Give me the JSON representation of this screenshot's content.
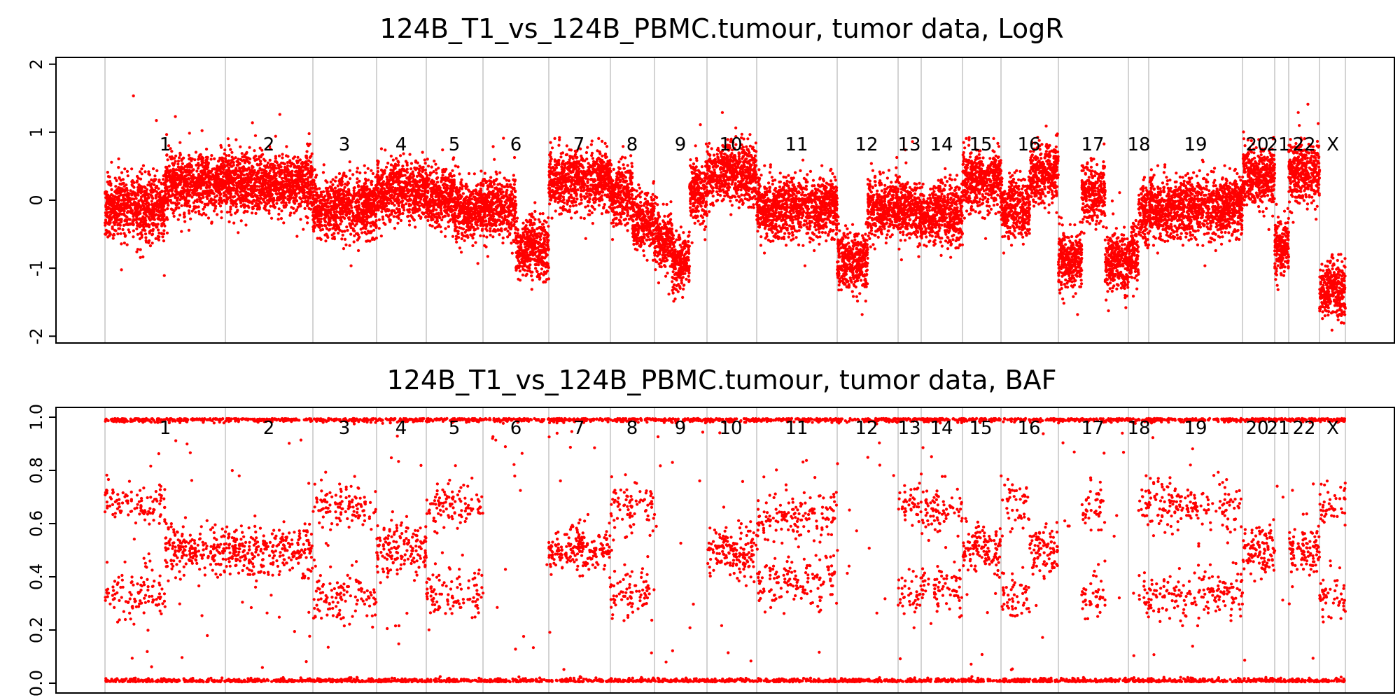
{
  "chart_data": [
    {
      "type": "scatter",
      "title": "124B_T1_vs_124B_PBMC.tumour, tumor data, LogR",
      "xlabel": "",
      "ylabel": "",
      "ylim": [
        -2.1,
        2.1
      ],
      "yticks": [
        "-2",
        "-1",
        "0",
        "1",
        "2"
      ],
      "grid": false,
      "color": "#ff0000",
      "chromosomes": [
        "1",
        "2",
        "3",
        "4",
        "5",
        "6",
        "7",
        "8",
        "9",
        "10",
        "11",
        "12",
        "13",
        "14",
        "15",
        "16",
        "17",
        "18",
        "19",
        "20",
        "21",
        "22",
        "X"
      ],
      "segments": [
        {
          "chrom": "1",
          "mean": [
            -0.1,
            0.25
          ]
        },
        {
          "chrom": "2",
          "mean": [
            0.25
          ]
        },
        {
          "chrom": "3",
          "mean": [
            -0.1
          ]
        },
        {
          "chrom": "4",
          "mean": [
            0.15
          ]
        },
        {
          "chrom": "5",
          "mean": [
            0.05,
            -0.15
          ]
        },
        {
          "chrom": "6",
          "mean": [
            -0.1,
            -0.7
          ]
        },
        {
          "chrom": "7",
          "mean": [
            0.3
          ]
        },
        {
          "chrom": "8",
          "mean": [
            0.1,
            -0.3
          ]
        },
        {
          "chrom": "9",
          "mean": [
            -0.6,
            -0.9,
            0.1
          ]
        },
        {
          "chrom": "10",
          "mean": [
            0.4
          ]
        },
        {
          "chrom": "11",
          "mean": [
            -0.1
          ]
        },
        {
          "chrom": "12",
          "mean": [
            -0.9,
            -0.1
          ]
        },
        {
          "chrom": "13",
          "mean": [
            -0.15
          ]
        },
        {
          "chrom": "14",
          "mean": [
            -0.2
          ]
        },
        {
          "chrom": "15",
          "mean": [
            0.3
          ]
        },
        {
          "chrom": "16",
          "mean": [
            -0.1,
            0.4
          ]
        },
        {
          "chrom": "17",
          "mean": [
            -0.9,
            0.1,
            -0.9
          ]
        },
        {
          "chrom": "18",
          "mean": [
            -0.8,
            -0.2
          ]
        },
        {
          "chrom": "19",
          "mean": [
            -0.1
          ]
        },
        {
          "chrom": "20",
          "mean": [
            0.35
          ]
        },
        {
          "chrom": "21",
          "mean": [
            -0.7
          ]
        },
        {
          "chrom": "22",
          "mean": [
            0.4
          ]
        },
        {
          "chrom": "X",
          "mean": [
            -1.3
          ]
        }
      ]
    },
    {
      "type": "scatter",
      "title": "124B_T1_vs_124B_PBMC.tumour, tumor data, BAF",
      "xlabel": "",
      "ylabel": "",
      "ylim": [
        0,
        1
      ],
      "yticks": [
        "0.0",
        "0.2",
        "0.4",
        "0.6",
        "0.8",
        "1.0"
      ],
      "grid": false,
      "color": "#ff0000",
      "chromosomes": [
        "1",
        "2",
        "3",
        "4",
        "5",
        "6",
        "7",
        "8",
        "9",
        "10",
        "11",
        "12",
        "13",
        "14",
        "15",
        "16",
        "17",
        "18",
        "19",
        "20",
        "21",
        "22",
        "X"
      ],
      "segments": [
        {
          "chrom": "1",
          "baf": [
            [
              0.33,
              0.67
            ],
            [
              0.5
            ]
          ]
        },
        {
          "chrom": "2",
          "baf": [
            [
              0.5
            ]
          ]
        },
        {
          "chrom": "3",
          "baf": [
            [
              0.33,
              0.67
            ]
          ]
        },
        {
          "chrom": "4",
          "baf": [
            [
              0.5
            ]
          ]
        },
        {
          "chrom": "5",
          "baf": [
            [
              0.33,
              0.67
            ]
          ]
        },
        {
          "chrom": "6",
          "baf": [
            []
          ]
        },
        {
          "chrom": "7",
          "baf": [
            [
              0.5
            ]
          ]
        },
        {
          "chrom": "8",
          "baf": [
            [
              0.33,
              0.67
            ]
          ]
        },
        {
          "chrom": "9",
          "baf": [
            []
          ]
        },
        {
          "chrom": "10",
          "baf": [
            [
              0.5
            ]
          ]
        },
        {
          "chrom": "11",
          "baf": [
            [
              0.38,
              0.62
            ]
          ]
        },
        {
          "chrom": "12",
          "baf": [
            []
          ]
        },
        {
          "chrom": "13",
          "baf": [
            [
              0.33,
              0.67
            ]
          ]
        },
        {
          "chrom": "14",
          "baf": [
            [
              0.35,
              0.65
            ]
          ]
        },
        {
          "chrom": "15",
          "baf": [
            [
              0.5
            ]
          ]
        },
        {
          "chrom": "16",
          "baf": [
            [
              0.33,
              0.67
            ],
            [
              0.5
            ]
          ]
        },
        {
          "chrom": "17",
          "baf": [
            [],
            [
              0.33,
              0.67
            ],
            []
          ]
        },
        {
          "chrom": "18",
          "baf": [
            [],
            [
              0.33,
              0.67
            ]
          ]
        },
        {
          "chrom": "19",
          "baf": [
            [
              0.33,
              0.67
            ]
          ]
        },
        {
          "chrom": "20",
          "baf": [
            [
              0.5
            ]
          ]
        },
        {
          "chrom": "21",
          "baf": [
            []
          ]
        },
        {
          "chrom": "22",
          "baf": [
            [
              0.5
            ]
          ]
        },
        {
          "chrom": "X",
          "baf": [
            [
              0.33,
              0.67
            ]
          ]
        }
      ]
    }
  ]
}
